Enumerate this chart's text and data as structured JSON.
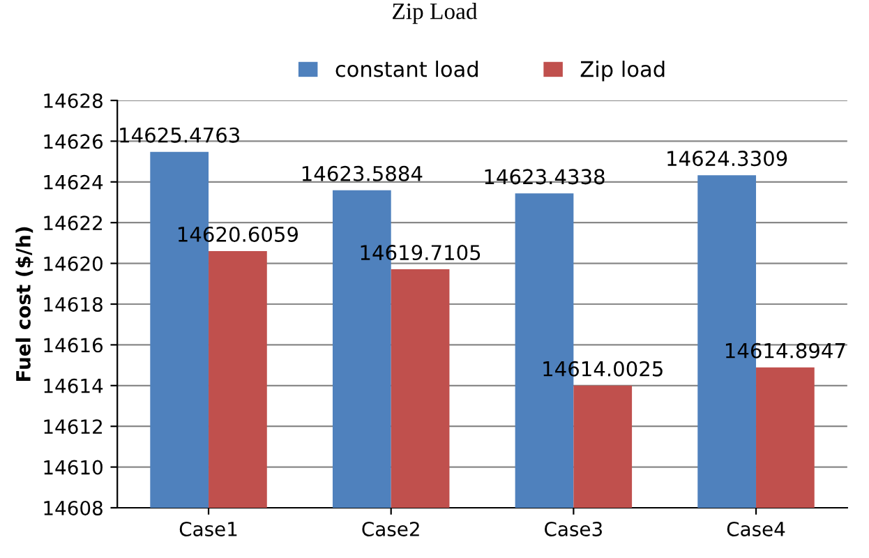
{
  "chart_data": {
    "type": "bar",
    "title": "Zip Load",
    "ylabel": "Fuel cost ($/h)",
    "categories": [
      "Case1",
      "Case2",
      "Case3",
      "Case4"
    ],
    "series": [
      {
        "name": "constant load",
        "color": "#4f81bd",
        "values": [
          14625.4763,
          14623.5884,
          14623.4338,
          14624.3309
        ]
      },
      {
        "name": "Zip load",
        "color": "#c0504d",
        "values": [
          14620.6059,
          14619.7105,
          14614.0025,
          14614.8947
        ]
      }
    ],
    "ylim": [
      14608,
      14628
    ],
    "yticks": [
      14608,
      14610,
      14612,
      14614,
      14616,
      14618,
      14620,
      14622,
      14624,
      14626,
      14628
    ],
    "grid": "y",
    "legend": "top",
    "data_labels": true
  }
}
